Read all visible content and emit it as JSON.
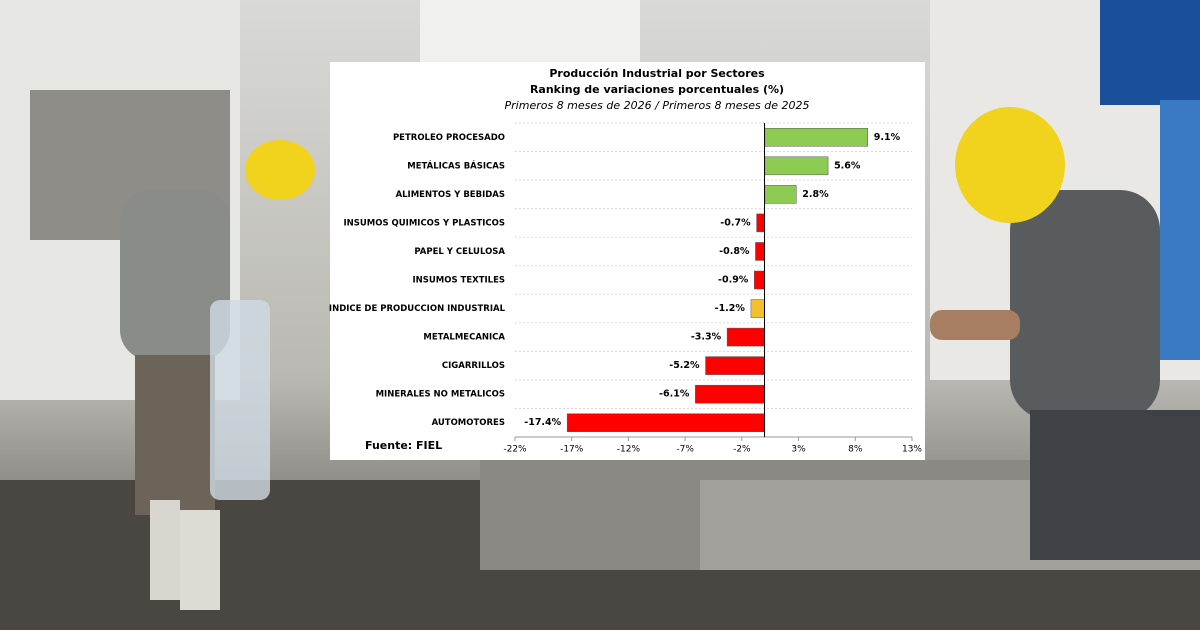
{
  "chart_data": {
    "type": "bar",
    "orientation": "horizontal",
    "title": "Producción Industrial por Sectores",
    "subtitle": "Ranking de variaciones porcentuales (%)",
    "period": "Primeros 8 meses de 2026 / Primeros 8 meses de 2025",
    "source": "Fuente: FIEL",
    "categories": [
      "PETROLEO PROCESADO",
      "METÁLICAS BÁSICAS",
      "ALIMENTOS Y BEBIDAS",
      "INSUMOS QUIMICOS Y PLASTICOS",
      "PAPEL Y CELULOSA",
      "INSUMOS TEXTILES",
      "INDICE DE PRODUCCION INDUSTRIAL",
      "METALMECANICA",
      "CIGARRILLOS",
      "MINERALES NO METALICOS",
      "AUTOMOTORES"
    ],
    "values": [
      9.1,
      5.6,
      2.8,
      -0.7,
      -0.8,
      -0.9,
      -1.2,
      -3.3,
      -5.2,
      -6.1,
      -17.4
    ],
    "value_labels": [
      "9.1%",
      "5.6%",
      "2.8%",
      "-0.7%",
      "-0.8%",
      "-0.9%",
      "-1.2%",
      "-3.3%",
      "-5.2%",
      "-6.1%",
      "-17.4%"
    ],
    "colors": [
      "#8dcb52",
      "#8dcb52",
      "#8dcb52",
      "#ff0000",
      "#ff0000",
      "#ff0000",
      "#f4bf2c",
      "#ff0000",
      "#ff0000",
      "#ff0000",
      "#ff0000"
    ],
    "xlim": [
      -22,
      13
    ],
    "xticks": [
      {
        "value": -22,
        "label": "-22%"
      },
      {
        "value": -17,
        "label": "-17%"
      },
      {
        "value": -12,
        "label": "-12%"
      },
      {
        "value": -7,
        "label": "-7%"
      },
      {
        "value": -2,
        "label": "-2%"
      },
      {
        "value": 3,
        "label": "3%"
      },
      {
        "value": 8,
        "label": "8%"
      },
      {
        "value": 13,
        "label": "13%"
      }
    ]
  }
}
